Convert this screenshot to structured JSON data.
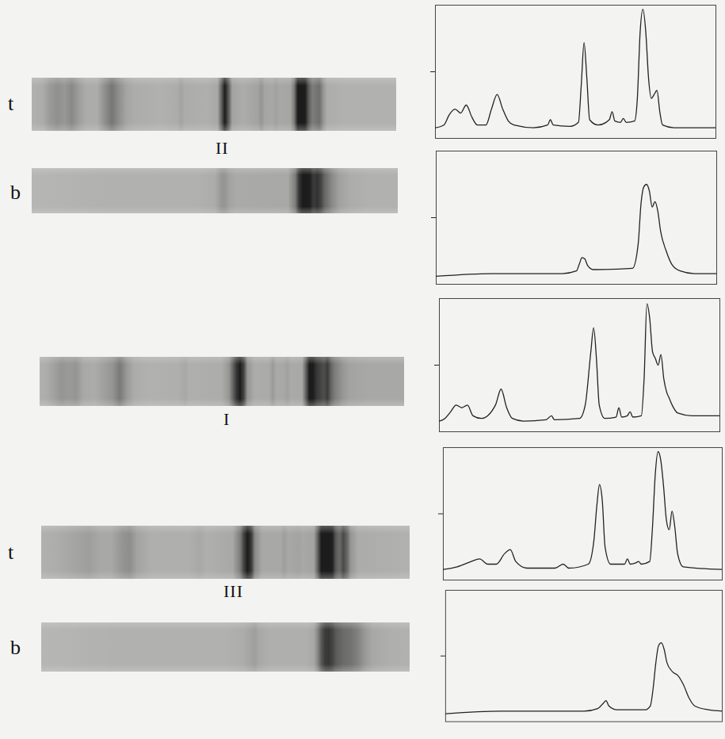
{
  "figure": {
    "rows": [
      {
        "group": "II",
        "strips": [
          {
            "label": "t"
          },
          {
            "label": "b"
          }
        ]
      },
      {
        "group": "I",
        "strips": [
          {}
        ]
      },
      {
        "group": "III",
        "strips": [
          {
            "label": "t"
          },
          {
            "label": "b"
          }
        ]
      }
    ]
  },
  "chart_data": [
    {
      "type": "line",
      "color": "#222222",
      "xlim": [
        0,
        100
      ],
      "ylim": [
        0,
        100
      ],
      "yticks": [
        50
      ],
      "tick_labels": false,
      "x": [
        0,
        3,
        5,
        7,
        9,
        11,
        13,
        15,
        18,
        20,
        22,
        24,
        26,
        28,
        35,
        40,
        41,
        42,
        48,
        51,
        52,
        53,
        54,
        55,
        58,
        62,
        63,
        64,
        66,
        67,
        68,
        71,
        72,
        73,
        74,
        75,
        76,
        77,
        78,
        79,
        80,
        81,
        85,
        100
      ],
      "values": [
        8,
        10,
        18,
        22,
        19,
        25,
        16,
        10,
        10,
        22,
        33,
        22,
        13,
        10,
        8,
        10,
        14,
        10,
        9,
        12,
        40,
        72,
        45,
        14,
        10,
        14,
        20,
        13,
        12,
        15,
        12,
        13,
        30,
        80,
        97,
        80,
        45,
        30,
        33,
        36,
        20,
        10,
        8,
        8
      ]
    },
    {
      "type": "line",
      "color": "#222222",
      "xlim": [
        0,
        100
      ],
      "ylim": [
        0,
        100
      ],
      "yticks": [
        50
      ],
      "tick_labels": false,
      "x": [
        0,
        20,
        45,
        50,
        51,
        52,
        53,
        54,
        56,
        70,
        72,
        73,
        74,
        75,
        76,
        77,
        78,
        79,
        80,
        82,
        84,
        87,
        92,
        100
      ],
      "values": [
        6,
        8,
        8,
        10,
        15,
        20,
        19,
        14,
        11,
        12,
        30,
        60,
        73,
        75,
        70,
        58,
        62,
        55,
        40,
        25,
        15,
        10,
        8,
        8
      ]
    },
    {
      "type": "line",
      "color": "#222222",
      "xlim": [
        0,
        100
      ],
      "ylim": [
        0,
        100
      ],
      "yticks": [
        50
      ],
      "tick_labels": false,
      "x": [
        0,
        2,
        4,
        6,
        8,
        10,
        12,
        15,
        20,
        22,
        24,
        26,
        30,
        38,
        40,
        41,
        50,
        52,
        54,
        55,
        56,
        57,
        59,
        63,
        64,
        65,
        67,
        68,
        69,
        72,
        73,
        74,
        75,
        76,
        77,
        78,
        79,
        80,
        81,
        82,
        83,
        85,
        90,
        100
      ],
      "values": [
        8,
        10,
        15,
        20,
        18,
        20,
        12,
        10,
        20,
        32,
        18,
        10,
        8,
        9,
        12,
        9,
        10,
        20,
        60,
        78,
        55,
        20,
        10,
        11,
        18,
        11,
        12,
        15,
        11,
        12,
        40,
        96,
        85,
        60,
        55,
        50,
        58,
        40,
        30,
        25,
        20,
        14,
        12,
        12
      ]
    },
    {
      "type": "line",
      "color": "#222222",
      "xlim": [
        0,
        100
      ],
      "ylim": [
        0,
        100
      ],
      "yticks": [
        50
      ],
      "tick_labels": false,
      "x": [
        0,
        5,
        10,
        13,
        16,
        19,
        22,
        24,
        26,
        30,
        40,
        43,
        45,
        52,
        54,
        55,
        56,
        57,
        58,
        60,
        65,
        66,
        67,
        69,
        70,
        71,
        74,
        75,
        76,
        77,
        78,
        79,
        80,
        81,
        82,
        83,
        84,
        86,
        100
      ],
      "values": [
        8,
        10,
        14,
        16,
        12,
        12,
        20,
        23,
        14,
        9,
        9,
        12,
        9,
        12,
        30,
        55,
        72,
        60,
        25,
        12,
        12,
        16,
        12,
        13,
        14,
        12,
        14,
        40,
        80,
        97,
        90,
        70,
        45,
        38,
        52,
        40,
        20,
        10,
        8
      ]
    },
    {
      "type": "line",
      "color": "#222222",
      "xlim": [
        0,
        100
      ],
      "ylim": [
        0,
        100
      ],
      "yticks": [
        50
      ],
      "tick_labels": false,
      "x": [
        0,
        20,
        50,
        55,
        57,
        58,
        59,
        62,
        72,
        74,
        75,
        76,
        77,
        78,
        79,
        80,
        82,
        84,
        86,
        88,
        90,
        95,
        100
      ],
      "values": [
        6,
        8,
        8,
        10,
        14,
        16,
        12,
        9,
        9,
        12,
        25,
        45,
        58,
        60,
        55,
        45,
        38,
        35,
        28,
        18,
        12,
        9,
        8
      ]
    }
  ]
}
